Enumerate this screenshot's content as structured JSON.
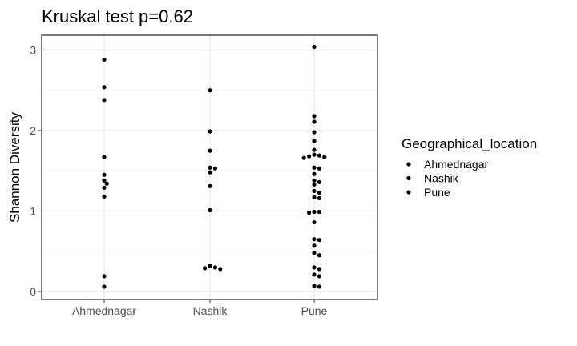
{
  "chart_data": {
    "type": "scatter",
    "title": "Kruskal test p=0.62",
    "xlabel": "",
    "ylabel": "Shannon Diversity",
    "categories": [
      "Ahmednagar",
      "Nashik",
      "Pune"
    ],
    "y_ticks": [
      0,
      1,
      2,
      3
    ],
    "ylim": [
      -0.05,
      3.2
    ],
    "grid": true,
    "legend": {
      "title": "Geographical_location",
      "position": "right",
      "entries": [
        "Ahmednagar",
        "Nashik",
        "Pune"
      ]
    },
    "point_color": "#000000",
    "points": {
      "Ahmednagar": [
        2.88,
        2.54,
        2.38,
        1.67,
        1.45,
        1.38,
        1.34,
        1.29,
        1.18,
        0.19,
        0.06
      ],
      "Nashik": [
        2.5,
        1.99,
        1.75,
        1.54,
        1.53,
        1.48,
        1.31,
        1.01,
        0.32,
        0.3,
        0.29,
        0.28
      ],
      "Pune": [
        3.04,
        2.18,
        2.11,
        1.98,
        1.87,
        1.76,
        1.7,
        1.69,
        1.68,
        1.67,
        1.66,
        1.54,
        1.53,
        1.46,
        1.38,
        1.36,
        1.33,
        1.25,
        1.23,
        1.17,
        1.16,
        0.99,
        0.99,
        0.98,
        0.86,
        0.65,
        0.64,
        0.57,
        0.48,
        0.45,
        0.3,
        0.28,
        0.21,
        0.19,
        0.07,
        0.06
      ]
    }
  }
}
